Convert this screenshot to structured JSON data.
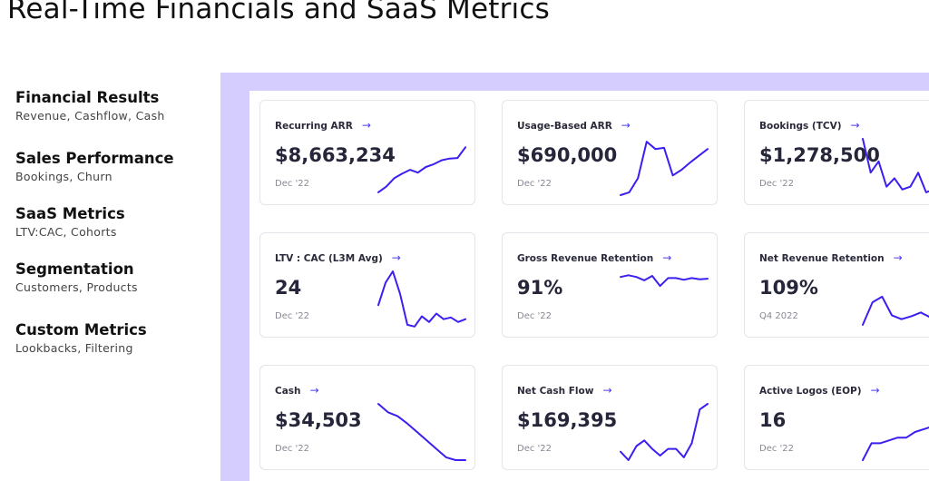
{
  "title": "Real-Time Financials and SaaS Metrics",
  "nav": [
    {
      "heading": "Financial Results",
      "sub": "Revenue, Cashflow, Cash"
    },
    {
      "heading": "Sales Performance",
      "sub": "Bookings, Churn"
    },
    {
      "heading": "SaaS Metrics",
      "sub": "LTV:CAC, Cohorts"
    },
    {
      "heading": "Segmentation",
      "sub": "Customers, Products"
    },
    {
      "heading": "Custom Metrics",
      "sub": "Lookbacks, Filtering"
    }
  ],
  "accent": "#3a1ff0",
  "arrow": "→",
  "cards": [
    {
      "title": "Recurring ARR",
      "value": "$8,663,234",
      "date": "Dec '22",
      "spark": [
        0.05,
        0.15,
        0.3,
        0.38,
        0.45,
        0.4,
        0.5,
        0.55,
        0.62,
        0.65,
        0.66,
        0.85
      ]
    },
    {
      "title": "Usage-Based ARR",
      "value": "$690,000",
      "date": "Dec '22",
      "spark": [
        0,
        0.05,
        0.3,
        0.95,
        0.82,
        0.84,
        0.35,
        0.45,
        0.58,
        0.7,
        0.82
      ]
    },
    {
      "title": "Bookings (TCV)",
      "value": "$1,278,500",
      "date": "Dec '22",
      "spark": [
        1,
        0.4,
        0.6,
        0.15,
        0.3,
        0.1,
        0.15,
        0.4,
        0.05,
        0.1,
        0.65,
        0.2
      ]
    },
    {
      "title": "LTV : CAC (L3M Avg)",
      "value": "24",
      "date": "Dec '22",
      "spark": [
        0.4,
        0.8,
        1,
        0.6,
        0.05,
        0.02,
        0.2,
        0.1,
        0.25,
        0.15,
        0.18,
        0.1,
        0.15
      ]
    },
    {
      "title": "Gross Revenue Retention",
      "value": "91%",
      "date": "Dec '22",
      "spark": [
        0.9,
        0.93,
        0.9,
        0.84,
        0.92,
        0.74,
        0.88,
        0.88,
        0.85,
        0.88,
        0.86,
        0.87
      ]
    },
    {
      "title": "Net Revenue Retention",
      "value": "109%",
      "date": "Q4 2022",
      "spark": [
        0.05,
        0.45,
        0.55,
        0.22,
        0.15,
        0.2,
        0.27,
        0.18,
        0.15,
        0.2
      ]
    },
    {
      "title": "Cash",
      "value": "$34,503",
      "date": "Dec '22",
      "spark": [
        1,
        0.85,
        0.78,
        0.65,
        0.5,
        0.35,
        0.2,
        0.05,
        0,
        0
      ]
    },
    {
      "title": "Net Cash Flow",
      "value": "$169,395",
      "date": "Dec '22",
      "spark": [
        0.15,
        0,
        0.25,
        0.35,
        0.2,
        0.08,
        0.2,
        0.2,
        0.05,
        0.3,
        0.9,
        1
      ]
    },
    {
      "title": "Active Logos (EOP)",
      "value": "16",
      "date": "Dec '22",
      "spark": [
        0,
        0.3,
        0.3,
        0.35,
        0.4,
        0.4,
        0.5,
        0.55,
        0.6,
        0.75,
        0.9
      ]
    }
  ]
}
